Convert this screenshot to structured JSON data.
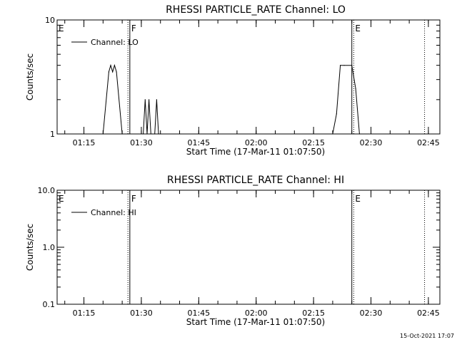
{
  "timestamp": "15-Oct-2021 17:07",
  "chart_data": [
    {
      "type": "line",
      "title": "RHESSI PARTICLE_RATE Channel: LO",
      "xlabel": "Start Time (17-Mar-11 01:07:50)",
      "ylabel": "Counts/sec",
      "yscale": "log",
      "xlim": [
        "01:08",
        "02:48"
      ],
      "ylim": [
        1,
        10
      ],
      "xticks": [
        "01:15",
        "01:30",
        "01:45",
        "02:00",
        "02:15",
        "02:30",
        "02:45"
      ],
      "yticks": [
        {
          "value": 1,
          "label": "1"
        },
        {
          "value": 10,
          "label": "10"
        }
      ],
      "legend": {
        "position": "top-left",
        "entries": [
          "Channel: LO"
        ]
      },
      "markers": [
        {
          "x": "01:08",
          "label": "E",
          "style": "none"
        },
        {
          "x": "01:26.5",
          "label": "",
          "style": "dotted"
        },
        {
          "x": "01:27",
          "label": "F",
          "style": "solid"
        },
        {
          "x": "02:25",
          "label": "",
          "style": "solid"
        },
        {
          "x": "02:25.5",
          "label": "E",
          "style": "dotted"
        },
        {
          "x": "02:44",
          "label": "",
          "style": "dotted"
        }
      ],
      "series": [
        {
          "name": "Channel: LO",
          "x": [
            "01:20",
            "01:21.5",
            "01:22",
            "01:22.5",
            "01:23",
            "01:23.5",
            "01:25",
            "01:30.5",
            "01:31",
            "01:31.5",
            "01:32",
            "01:32.5",
            "01:33",
            "01:33.5",
            "01:34",
            "01:34.5",
            "01:35",
            "02:20",
            "02:21",
            "02:22",
            "02:23",
            "02:25",
            "02:26",
            "02:27"
          ],
          "y": [
            1,
            3.5,
            4,
            3.5,
            4,
            3.5,
            1,
            1,
            2,
            1,
            2,
            1,
            1,
            1,
            2,
            1,
            1,
            1,
            1.5,
            4,
            4,
            4,
            2.5,
            1
          ]
        }
      ]
    },
    {
      "type": "line",
      "title": "RHESSI PARTICLE_RATE Channel: HI",
      "xlabel": "Start Time (17-Mar-11 01:07:50)",
      "ylabel": "Counts/sec",
      "yscale": "log",
      "xlim": [
        "01:08",
        "02:48"
      ],
      "ylim": [
        0.1,
        10
      ],
      "xticks": [
        "01:15",
        "01:30",
        "01:45",
        "02:00",
        "02:15",
        "02:30",
        "02:45"
      ],
      "yticks": [
        {
          "value": 0.1,
          "label": "0.1"
        },
        {
          "value": 1,
          "label": "1.0"
        },
        {
          "value": 10,
          "label": "10.0"
        }
      ],
      "legend": {
        "position": "top-left",
        "entries": [
          "Channel: HI"
        ]
      },
      "markers": [
        {
          "x": "01:08",
          "label": "E",
          "style": "none"
        },
        {
          "x": "01:26.5",
          "label": "",
          "style": "dotted"
        },
        {
          "x": "01:27",
          "label": "F",
          "style": "solid"
        },
        {
          "x": "02:25",
          "label": "",
          "style": "solid"
        },
        {
          "x": "02:25.5",
          "label": "E",
          "style": "dotted"
        },
        {
          "x": "02:44",
          "label": "",
          "style": "dotted"
        }
      ],
      "series": [
        {
          "name": "Channel: HI",
          "x": [],
          "y": []
        }
      ]
    }
  ]
}
